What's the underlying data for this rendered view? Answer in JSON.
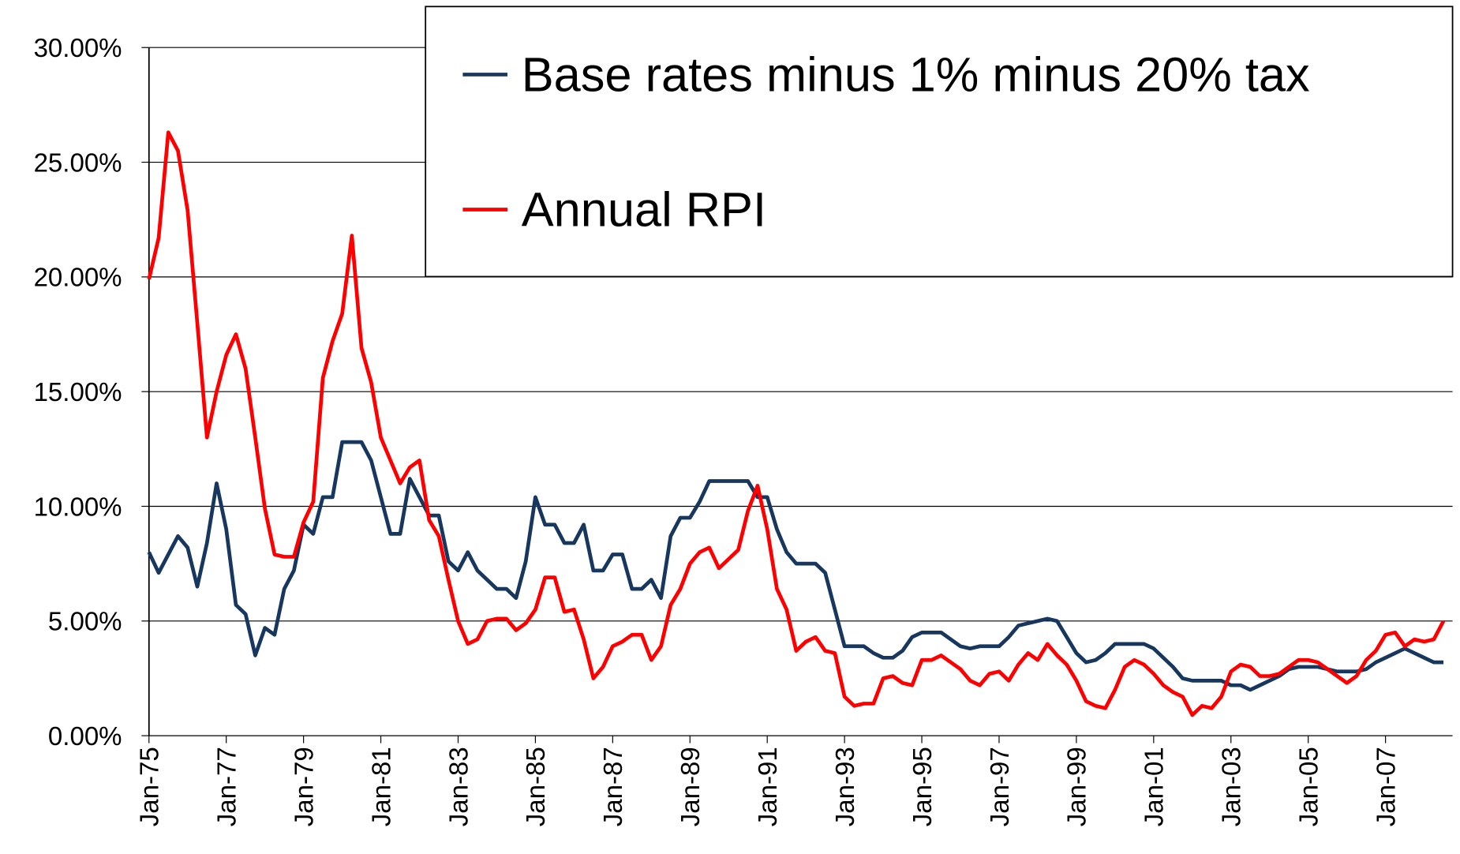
{
  "chart_data": {
    "type": "line",
    "categories": [
      "Jan-75",
      null,
      null,
      null,
      null,
      null,
      null,
      null,
      "Jan-77",
      null,
      null,
      null,
      null,
      null,
      null,
      null,
      "Jan-79",
      null,
      null,
      null,
      null,
      null,
      null,
      null,
      "Jan-81",
      null,
      null,
      null,
      null,
      null,
      null,
      null,
      "Jan-83",
      null,
      null,
      null,
      null,
      null,
      null,
      null,
      "Jan-85",
      null,
      null,
      null,
      null,
      null,
      null,
      null,
      "Jan-87",
      null,
      null,
      null,
      null,
      null,
      null,
      null,
      "Jan-89",
      null,
      null,
      null,
      null,
      null,
      null,
      null,
      "Jan-91",
      null,
      null,
      null,
      null,
      null,
      null,
      null,
      "Jan-93",
      null,
      null,
      null,
      null,
      null,
      null,
      null,
      "Jan-95",
      null,
      null,
      null,
      null,
      null,
      null,
      null,
      "Jan-97",
      null,
      null,
      null,
      null,
      null,
      null,
      null,
      "Jan-99",
      null,
      null,
      null,
      null,
      null,
      null,
      null,
      "Jan-01",
      null,
      null,
      null,
      null,
      null,
      null,
      null,
      "Jan-03",
      null,
      null,
      null,
      null,
      null,
      null,
      null,
      "Jan-05",
      null,
      null,
      null,
      null,
      null,
      null,
      null,
      "Jan-07",
      null,
      null,
      null,
      null,
      null,
      null
    ],
    "series": [
      {
        "name": "Base rates minus 1% minus 20% tax",
        "color": "#17375e",
        "values": [
          8.0,
          7.1,
          7.9,
          8.7,
          8.2,
          6.5,
          8.4,
          11.0,
          9.0,
          5.7,
          5.3,
          3.5,
          4.7,
          4.4,
          6.4,
          7.2,
          9.2,
          8.8,
          10.4,
          10.4,
          12.8,
          12.8,
          12.8,
          12.0,
          10.4,
          8.8,
          8.8,
          11.2,
          10.4,
          9.6,
          9.6,
          7.6,
          7.2,
          8.0,
          7.2,
          6.8,
          6.4,
          6.4,
          6.0,
          7.6,
          10.4,
          9.2,
          9.2,
          8.4,
          8.4,
          9.2,
          7.2,
          7.2,
          7.9,
          7.9,
          6.4,
          6.4,
          6.8,
          6.0,
          8.7,
          9.5,
          9.5,
          10.2,
          11.1,
          11.1,
          11.1,
          11.1,
          11.1,
          10.4,
          10.4,
          9.0,
          8.0,
          7.5,
          7.5,
          7.5,
          7.1,
          5.5,
          3.9,
          3.9,
          3.9,
          3.6,
          3.4,
          3.4,
          3.7,
          4.3,
          4.5,
          4.5,
          4.5,
          4.2,
          3.9,
          3.8,
          3.9,
          3.9,
          3.9,
          4.3,
          4.8,
          4.9,
          5.0,
          5.1,
          5.0,
          4.3,
          3.6,
          3.2,
          3.3,
          3.6,
          4.0,
          4.0,
          4.0,
          4.0,
          3.8,
          3.4,
          3.0,
          2.5,
          2.4,
          2.4,
          2.4,
          2.4,
          2.2,
          2.2,
          2.0,
          2.2,
          2.4,
          2.6,
          2.9,
          3.0,
          3.0,
          3.0,
          2.9,
          2.8,
          2.8,
          2.8,
          2.9,
          3.2,
          3.4,
          3.6,
          3.8,
          3.6,
          3.4,
          3.2,
          3.2
        ]
      },
      {
        "name": "Annual RPI",
        "color": "#ff0000",
        "values": [
          19.9,
          21.7,
          26.3,
          25.5,
          22.9,
          18.0,
          13.0,
          15.0,
          16.6,
          17.5,
          16.0,
          13.0,
          9.9,
          7.9,
          7.8,
          7.8,
          9.3,
          10.2,
          15.6,
          17.2,
          18.4,
          21.8,
          16.9,
          15.4,
          13.0,
          12.0,
          11.0,
          11.7,
          12.0,
          9.4,
          8.7,
          6.8,
          5.0,
          4.0,
          4.2,
          5.0,
          5.1,
          5.1,
          4.6,
          4.9,
          5.5,
          6.9,
          6.9,
          5.4,
          5.5,
          4.2,
          2.5,
          3.0,
          3.9,
          4.1,
          4.4,
          4.4,
          3.3,
          3.9,
          5.7,
          6.4,
          7.5,
          8.0,
          8.2,
          7.3,
          7.7,
          8.1,
          9.8,
          10.9,
          9.0,
          6.4,
          5.5,
          3.7,
          4.1,
          4.3,
          3.7,
          3.6,
          1.7,
          1.3,
          1.4,
          1.4,
          2.5,
          2.6,
          2.3,
          2.2,
          3.3,
          3.3,
          3.5,
          3.2,
          2.9,
          2.4,
          2.2,
          2.7,
          2.8,
          2.4,
          3.1,
          3.6,
          3.3,
          4.0,
          3.5,
          3.1,
          2.4,
          1.5,
          1.3,
          1.2,
          2.0,
          3.0,
          3.3,
          3.1,
          2.7,
          2.2,
          1.9,
          1.7,
          0.9,
          1.3,
          1.2,
          1.7,
          2.8,
          3.1,
          3.0,
          2.6,
          2.6,
          2.7,
          3.0,
          3.3,
          3.3,
          3.2,
          2.9,
          2.6,
          2.3,
          2.6,
          3.3,
          3.7,
          4.4,
          4.5,
          3.9,
          4.2,
          4.1,
          4.2,
          5.0
        ]
      }
    ],
    "ylim": [
      0,
      30
    ],
    "yticks": [
      {
        "value": 0,
        "label": "0.00%"
      },
      {
        "value": 5,
        "label": "5.00%"
      },
      {
        "value": 10,
        "label": "10.00%"
      },
      {
        "value": 15,
        "label": "15.00%"
      },
      {
        "value": 20,
        "label": "20.00%"
      },
      {
        "value": 25,
        "label": "25.00%"
      },
      {
        "value": 30,
        "label": "30.00%"
      }
    ],
    "grid": true,
    "legend": "top-right"
  }
}
